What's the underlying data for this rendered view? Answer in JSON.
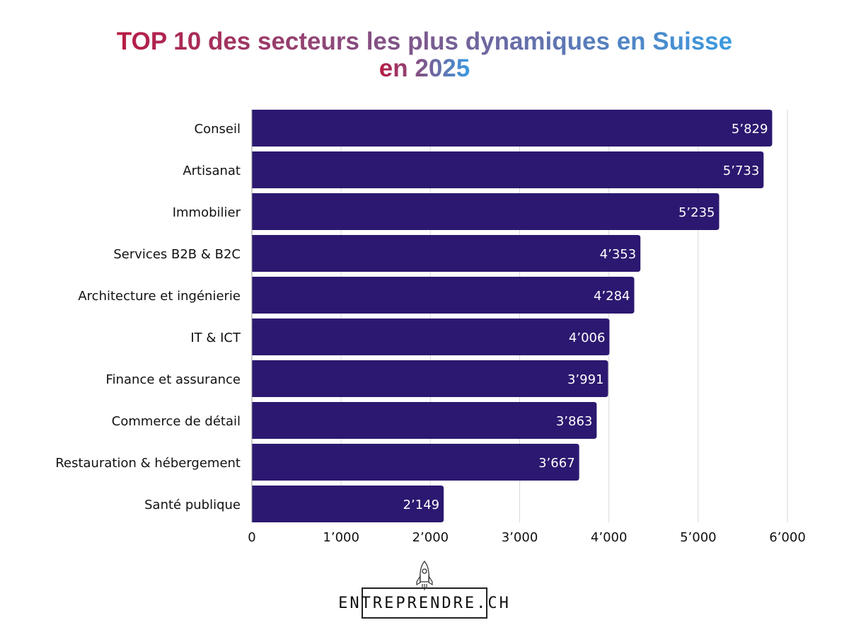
{
  "title": {
    "line1": "TOP 10 des secteurs les plus dynamiques en Suisse",
    "line2": "en 2025",
    "gradient_colors": [
      "#b81c45",
      "#7b5a8f",
      "#3b9be0"
    ]
  },
  "colors": {
    "bar": "#2c1870",
    "grid": "#d9d9d9",
    "axis": "#9a9a9a",
    "bar_label": "#ffffff"
  },
  "logo": {
    "text": "ENTREPRENDRE.CH",
    "icon": "rocket-icon"
  },
  "chart_data": {
    "type": "bar",
    "orientation": "horizontal",
    "title": "TOP 10 des secteurs les plus dynamiques en Suisse en 2025",
    "xlabel": "",
    "ylabel": "",
    "categories": [
      "Conseil",
      "Artisanat",
      "Immobilier",
      "Services B2B & B2C",
      "Architecture et ingénierie",
      "IT & ICT",
      "Finance et assurance",
      "Commerce de détail",
      "Restauration & hébergement",
      "Santé publique"
    ],
    "values": [
      5829,
      5733,
      5235,
      4353,
      4284,
      4006,
      3991,
      3863,
      3667,
      2149
    ],
    "value_labels": [
      "5’829",
      "5’733",
      "5’235",
      "4’353",
      "4’284",
      "4’006",
      "3’991",
      "3’863",
      "3’667",
      "2’149"
    ],
    "xlim": [
      0,
      6000
    ],
    "xticks": [
      0,
      1000,
      2000,
      3000,
      4000,
      5000,
      6000
    ],
    "xtick_labels": [
      "0",
      "1’000",
      "2’000",
      "3’000",
      "4’000",
      "5’000",
      "6’000"
    ],
    "grid": true,
    "legend": "none"
  }
}
